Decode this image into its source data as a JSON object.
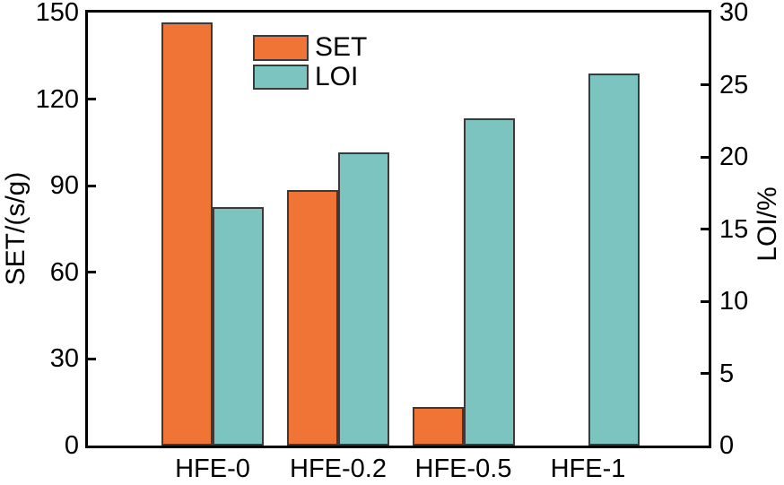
{
  "chart_data": {
    "type": "bar",
    "categories": [
      "HFE-0",
      "HFE-0.2",
      "HFE-0.5",
      "HFE-1"
    ],
    "series": [
      {
        "name": "SET",
        "axis": "left",
        "color": "#EF7435",
        "border_color": "#3a3a3a",
        "values": [
          146.5,
          88.4,
          13.2,
          null
        ]
      },
      {
        "name": "LOI",
        "axis": "right",
        "color": "#7CC4C0",
        "border_color": "#3a3a3a",
        "values": [
          16.5,
          20.3,
          22.7,
          25.8
        ]
      }
    ],
    "left_axis": {
      "label": "SET/(s/g)",
      "min": 0,
      "max": 150,
      "ticks": [
        0,
        30,
        60,
        90,
        120,
        150
      ]
    },
    "right_axis": {
      "label": "LOI/%",
      "min": 0,
      "max": 30,
      "ticks": [
        0,
        5,
        10,
        15,
        20,
        25,
        30
      ]
    },
    "legend": {
      "position": "top-inside",
      "entries": [
        "SET",
        "LOI"
      ]
    },
    "title": "",
    "xlabel": "",
    "grid": false,
    "frame_color": "#000000",
    "background": "#ffffff"
  }
}
